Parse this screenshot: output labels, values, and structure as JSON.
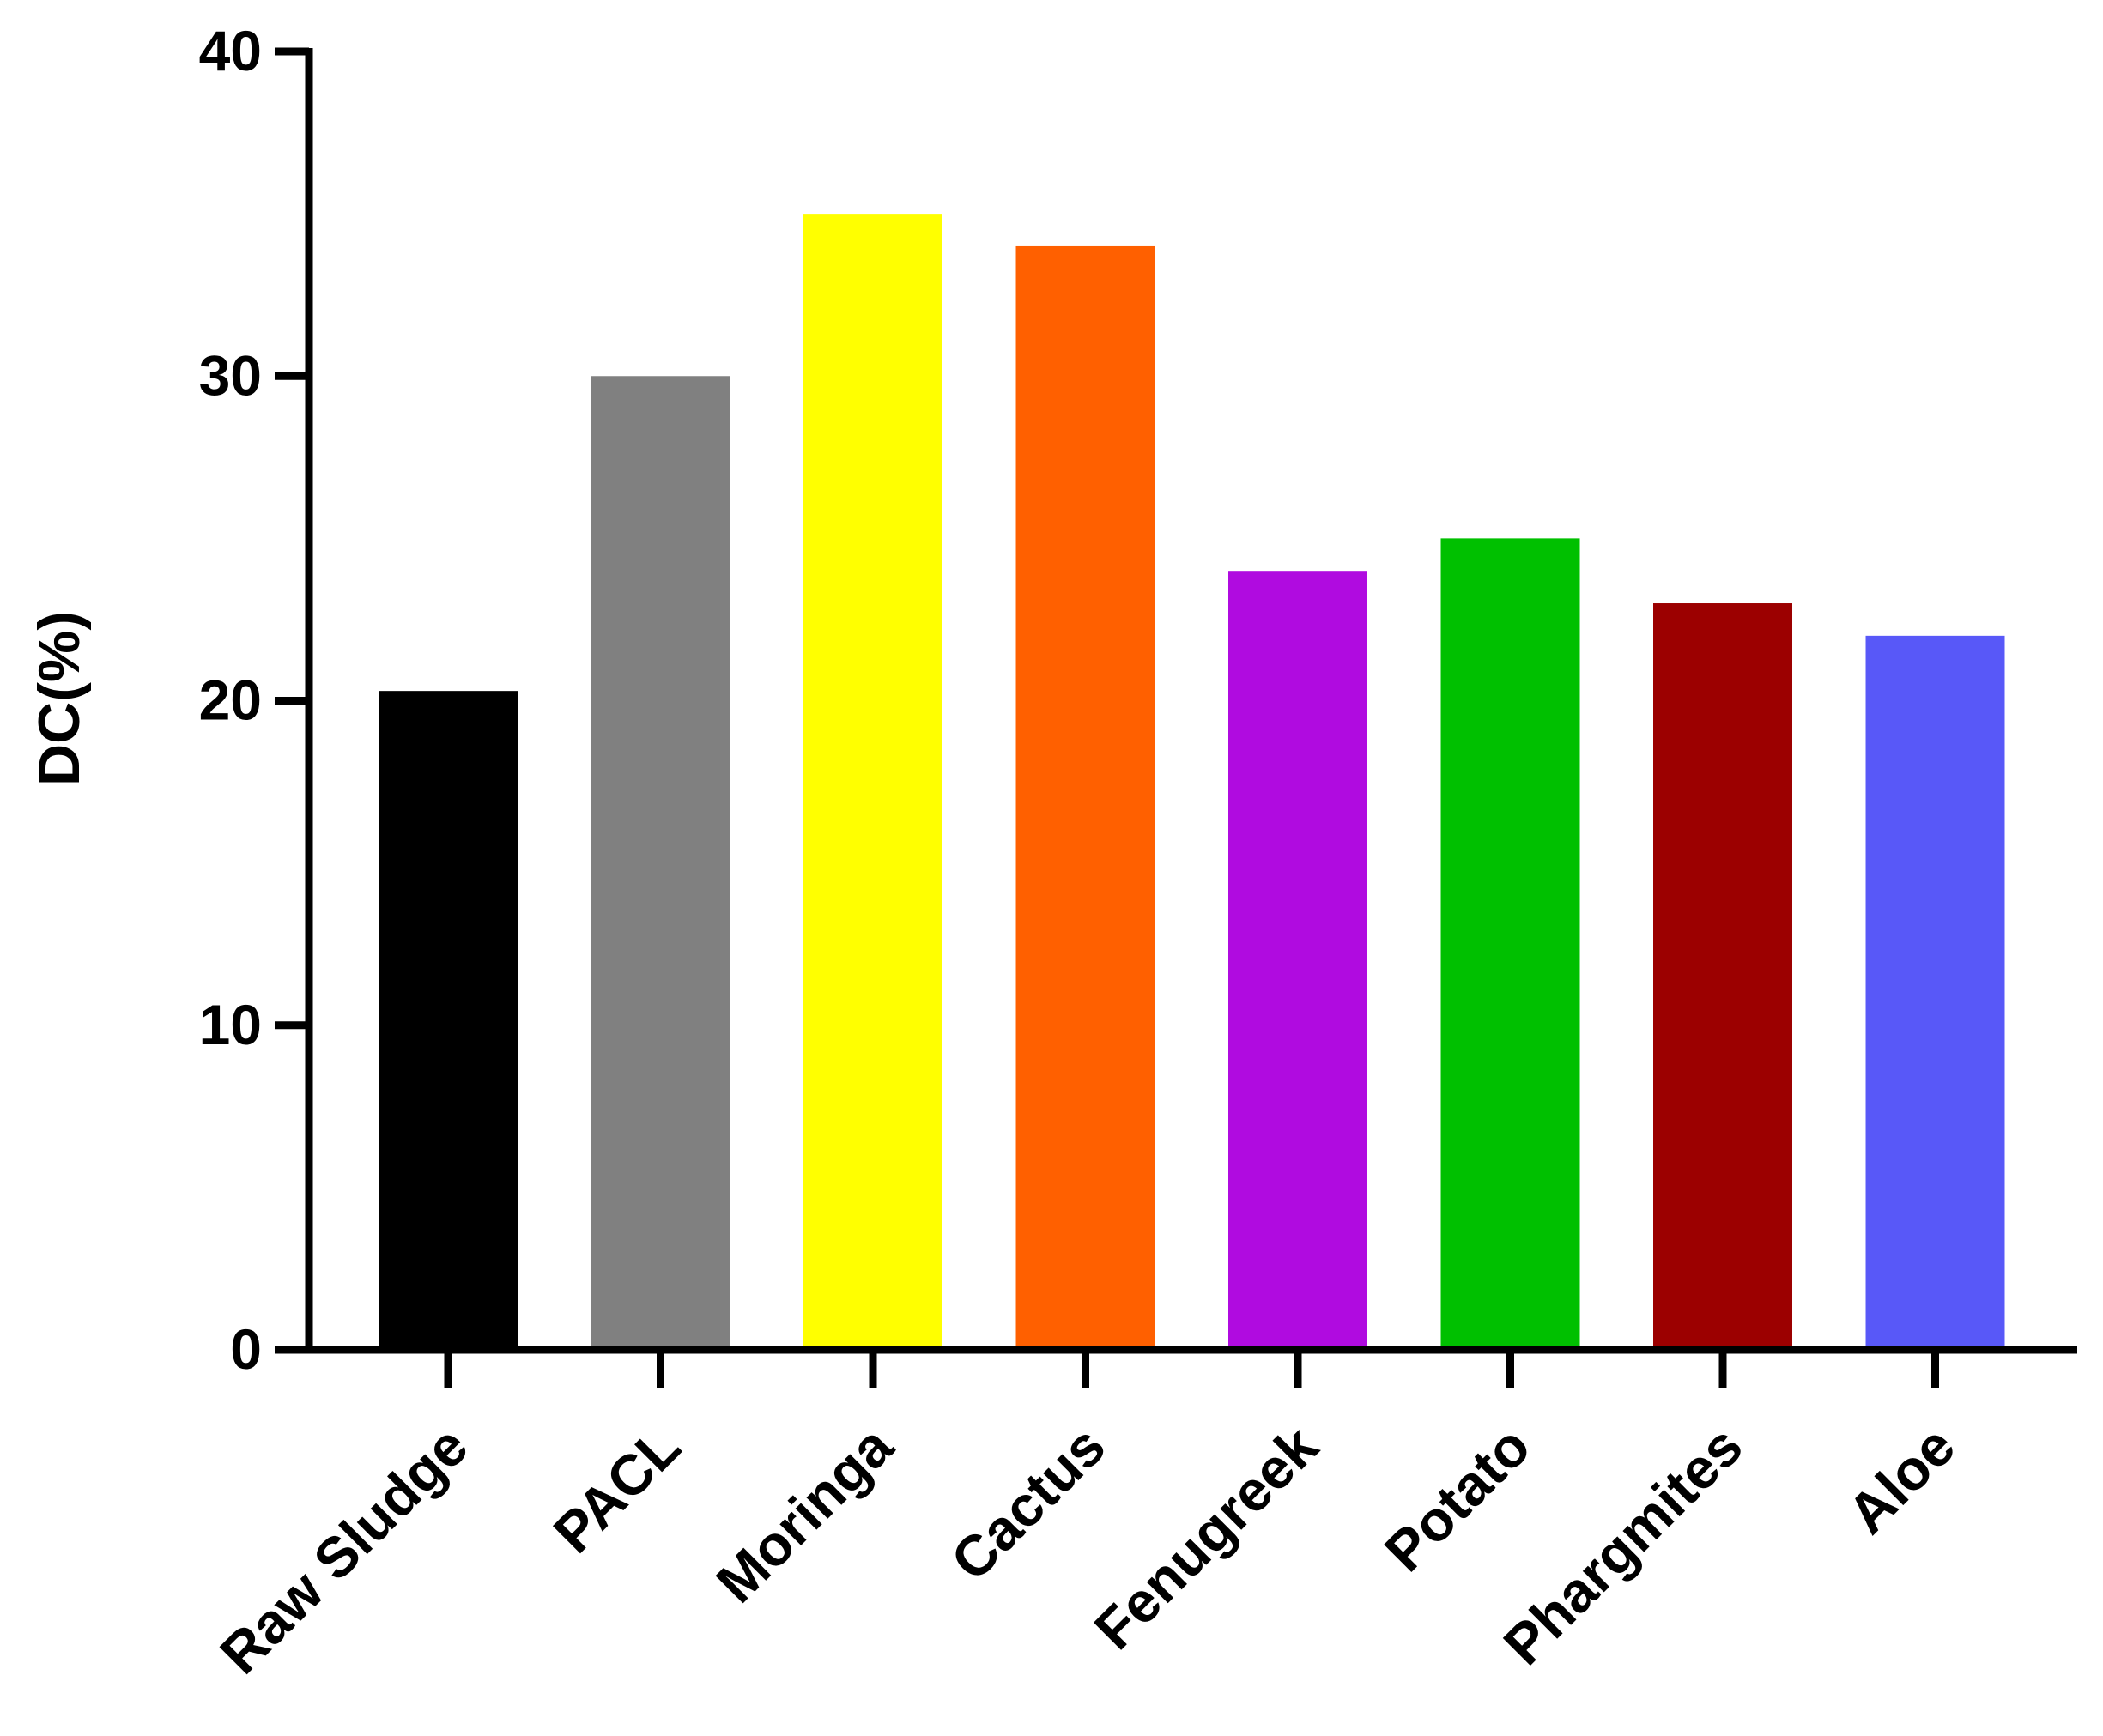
{
  "chart_data": {
    "type": "bar",
    "title": "",
    "xlabel": "",
    "ylabel": "DC(%)",
    "ylim": [
      0,
      40
    ],
    "yticks": [
      "0",
      "10",
      "20",
      "30",
      "40"
    ],
    "grid": false,
    "categories": [
      "Raw Sludge",
      "PACL",
      "Moringa",
      "Cactus",
      "Fenugreek",
      "Potato",
      "Phargmites",
      "Aloe"
    ],
    "values": [
      20.3,
      30.0,
      35.0,
      34.0,
      24.0,
      25.0,
      23.0,
      22.0
    ],
    "colors": [
      "#000000",
      "#808080",
      "#ffff00",
      "#ff6000",
      "#b00be0",
      "#00c000",
      "#9c0000",
      "#5858f8"
    ]
  }
}
